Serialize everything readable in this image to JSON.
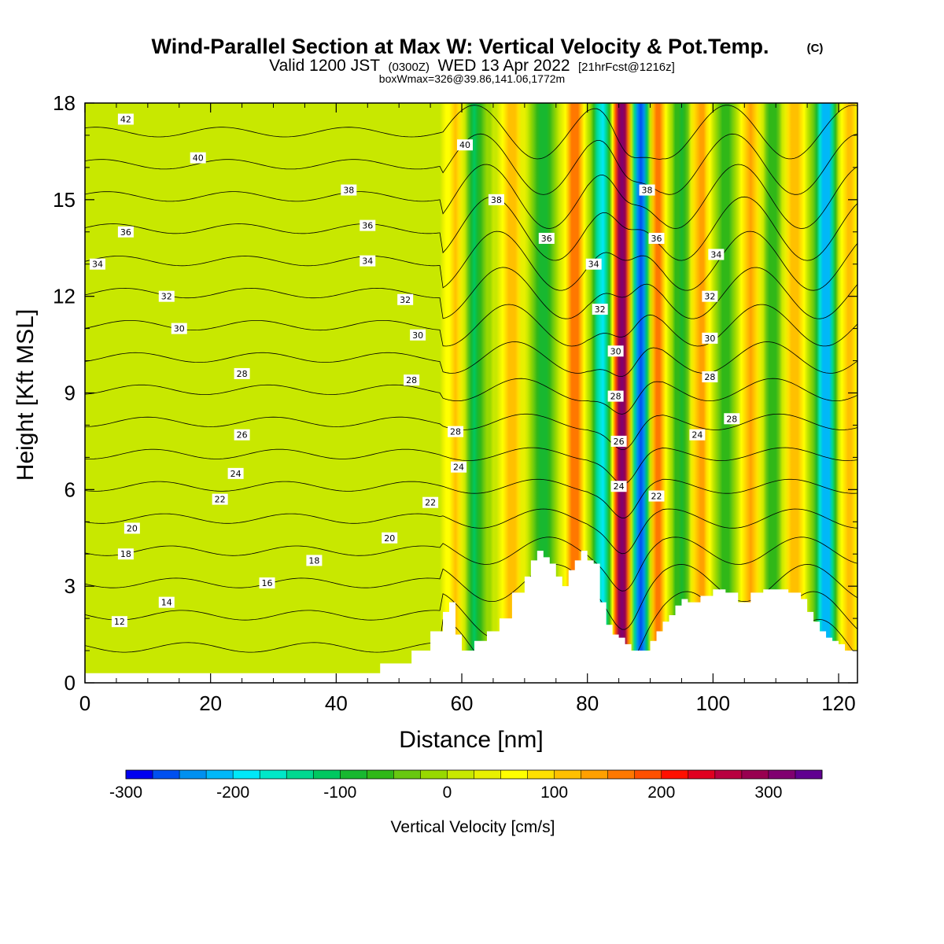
{
  "chart_data": {
    "type": "heatmap",
    "title": "Wind-Parallel Section at Max W: Vertical Velocity & Pot.Temp.",
    "title_suffix": "(C)",
    "subtitle_parts": [
      "Valid 1200 JST",
      "(0300Z)",
      "WED 13 Apr 2022",
      "[21hrFcst@1216z]"
    ],
    "subtitle2": "boxWmax=326@39.86,141.06,1772m",
    "xlabel": "Distance [nm]",
    "ylabel": "Height [Kft MSL]",
    "xlim": [
      0,
      123
    ],
    "ylim": [
      0,
      18
    ],
    "x_ticks": [
      "0",
      "20",
      "40",
      "60",
      "80",
      "100",
      "120"
    ],
    "y_ticks": [
      "0",
      "3",
      "6",
      "9",
      "12",
      "15",
      "18"
    ],
    "colorbar": {
      "label": "Vertical Velocity [cm/s]",
      "range": [
        -300,
        350
      ],
      "ticks": [
        "-300",
        "-200",
        "-100",
        "0",
        "100",
        "200",
        "300"
      ],
      "colors": [
        "#0000f0",
        "#0050f0",
        "#0090f0",
        "#00b8f8",
        "#00e8f8",
        "#00e8c8",
        "#00d890",
        "#00c860",
        "#18b830",
        "#30b818",
        "#68c810",
        "#98d800",
        "#c8e800",
        "#e8f000",
        "#ffff00",
        "#ffe000",
        "#ffc000",
        "#ffa000",
        "#ff7800",
        "#ff5000",
        "#ff1000",
        "#e00020",
        "#b80040",
        "#980050",
        "#800070",
        "#600090"
      ]
    },
    "updraft_bands_nm": [
      {
        "x": 59,
        "w": 100
      },
      {
        "x": 68,
        "w": 110
      },
      {
        "x": 78,
        "w": 170
      },
      {
        "x": 85.5,
        "w": 330
      },
      {
        "x": 91,
        "w": 180
      },
      {
        "x": 98,
        "w": 140
      },
      {
        "x": 106,
        "w": 130
      },
      {
        "x": 113,
        "w": 120
      },
      {
        "x": 121.5,
        "w": 110
      }
    ],
    "downdraft_bands_nm": [
      {
        "x": 62,
        "w": -110
      },
      {
        "x": 73,
        "w": -90
      },
      {
        "x": 82.5,
        "w": -200
      },
      {
        "x": 88.5,
        "w": -300
      },
      {
        "x": 95,
        "w": -90
      },
      {
        "x": 102,
        "w": -80
      },
      {
        "x": 109.5,
        "w": -70
      },
      {
        "x": 118,
        "w": -230
      }
    ],
    "terrain": {
      "x": [
        0,
        46,
        47,
        52,
        55,
        57,
        58,
        59,
        60,
        62,
        64,
        66,
        68,
        70,
        71,
        72,
        73,
        74,
        75,
        76,
        77,
        78,
        79,
        80,
        81,
        82,
        83,
        84,
        85,
        86,
        87,
        88,
        89,
        90,
        91,
        92,
        93,
        94,
        95,
        96,
        98,
        100,
        102,
        104,
        106,
        108,
        110,
        112,
        114,
        115,
        116,
        117,
        118,
        119,
        120,
        121,
        122,
        123
      ],
      "y": [
        0.3,
        0.3,
        0.6,
        1.0,
        1.6,
        2.2,
        2.5,
        1.5,
        1.0,
        1.3,
        1.6,
        2.0,
        2.8,
        3.3,
        3.8,
        4.1,
        3.9,
        3.7,
        3.3,
        3.0,
        3.5,
        3.8,
        4.1,
        3.8,
        3.7,
        2.5,
        1.8,
        1.5,
        1.4,
        1.2,
        1.0,
        1.0,
        1.0,
        1.3,
        1.6,
        1.9,
        2.1,
        2.4,
        2.6,
        2.5,
        2.7,
        2.9,
        2.8,
        2.5,
        2.8,
        2.9,
        2.9,
        2.8,
        2.6,
        2.2,
        1.9,
        1.6,
        1.4,
        1.3,
        1.2,
        1.0,
        1.0,
        1.0
      ]
    },
    "isentropes_C": [
      10,
      12,
      14,
      16,
      18,
      20,
      22,
      24,
      26,
      28,
      30,
      32,
      34,
      36,
      38,
      40,
      42,
      44
    ],
    "contour_labels": [
      {
        "text": "42",
        "x": 6.5,
        "y": 17.5
      },
      {
        "text": "40",
        "x": 18,
        "y": 16.3
      },
      {
        "text": "38",
        "x": 42,
        "y": 15.3
      },
      {
        "text": "36",
        "x": 6.5,
        "y": 14.0
      },
      {
        "text": "36",
        "x": 45,
        "y": 14.2
      },
      {
        "text": "34",
        "x": 2,
        "y": 13.0
      },
      {
        "text": "34",
        "x": 45,
        "y": 13.1
      },
      {
        "text": "32",
        "x": 13,
        "y": 12.0
      },
      {
        "text": "32",
        "x": 51,
        "y": 11.9
      },
      {
        "text": "30",
        "x": 15,
        "y": 11.0
      },
      {
        "text": "30",
        "x": 53,
        "y": 10.8
      },
      {
        "text": "28",
        "x": 25,
        "y": 9.6
      },
      {
        "text": "28",
        "x": 52,
        "y": 9.4
      },
      {
        "text": "26",
        "x": 25,
        "y": 7.7
      },
      {
        "text": "24",
        "x": 24,
        "y": 6.5
      },
      {
        "text": "22",
        "x": 21.5,
        "y": 5.7
      },
      {
        "text": "22",
        "x": 55,
        "y": 5.6
      },
      {
        "text": "20",
        "x": 7.5,
        "y": 4.8
      },
      {
        "text": "20",
        "x": 48.5,
        "y": 4.5
      },
      {
        "text": "18",
        "x": 6.5,
        "y": 4.0
      },
      {
        "text": "18",
        "x": 36.5,
        "y": 3.8
      },
      {
        "text": "16",
        "x": 29,
        "y": 3.1
      },
      {
        "text": "14",
        "x": 13,
        "y": 2.5
      },
      {
        "text": "12",
        "x": 5.5,
        "y": 1.9
      },
      {
        "text": "40",
        "x": 60.5,
        "y": 16.7
      },
      {
        "text": "38",
        "x": 65.5,
        "y": 15.0
      },
      {
        "text": "36",
        "x": 73.5,
        "y": 13.8
      },
      {
        "text": "34",
        "x": 81,
        "y": 13.0
      },
      {
        "text": "32",
        "x": 82,
        "y": 11.6
      },
      {
        "text": "30",
        "x": 84.5,
        "y": 10.3
      },
      {
        "text": "28",
        "x": 84.5,
        "y": 8.9
      },
      {
        "text": "26",
        "x": 85,
        "y": 7.5
      },
      {
        "text": "24",
        "x": 85,
        "y": 6.1
      },
      {
        "text": "28",
        "x": 59,
        "y": 7.8
      },
      {
        "text": "24",
        "x": 59.5,
        "y": 6.7
      },
      {
        "text": "38",
        "x": 89.5,
        "y": 15.3
      },
      {
        "text": "36",
        "x": 91,
        "y": 13.8
      },
      {
        "text": "34",
        "x": 100.5,
        "y": 13.3
      },
      {
        "text": "32",
        "x": 99.5,
        "y": 12.0
      },
      {
        "text": "30",
        "x": 99.5,
        "y": 10.7
      },
      {
        "text": "28",
        "x": 99.5,
        "y": 9.5
      },
      {
        "text": "28",
        "x": 103,
        "y": 8.2
      },
      {
        "text": "24",
        "x": 97.5,
        "y": 7.7
      },
      {
        "text": "22",
        "x": 91,
        "y": 5.8
      }
    ]
  }
}
